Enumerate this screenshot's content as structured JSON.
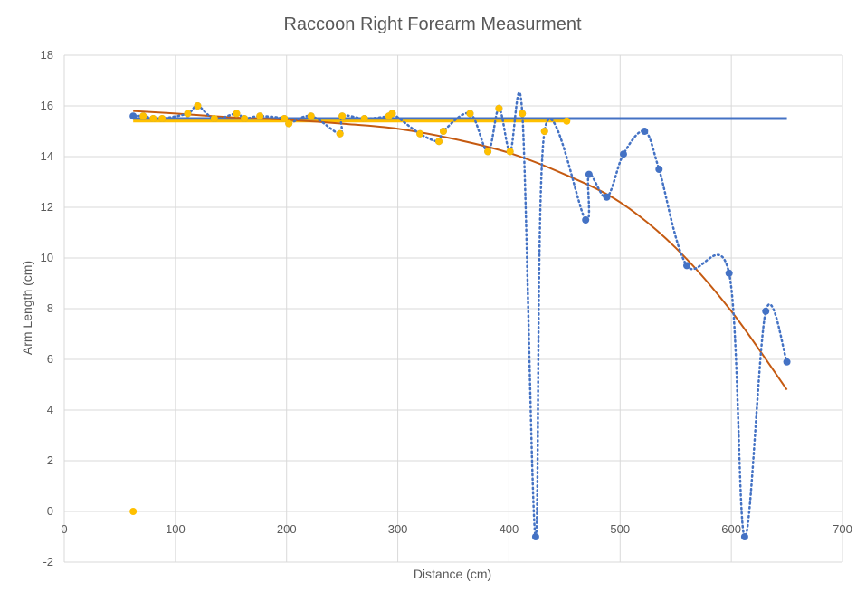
{
  "chart_data": {
    "type": "scatter",
    "title": "Raccoon Right Forearm Measurment",
    "xlabel": "Distance (cm)",
    "ylabel": "Arm Length (cm)",
    "xlim": [
      0,
      700
    ],
    "ylim": [
      -2,
      18
    ],
    "xticks": [
      "0",
      "100",
      "200",
      "300",
      "400",
      "500",
      "600",
      "700"
    ],
    "yticks": [
      "-2",
      "0",
      "2",
      "4",
      "6",
      "8",
      "10",
      "12",
      "14",
      "16",
      "18"
    ],
    "grid": true,
    "legend": "none",
    "series": [
      {
        "style": "markers-dotted-smooth-line",
        "color": "#4472c4",
        "x": [
          62,
          71,
          80,
          88,
          111,
          120,
          135,
          155,
          162,
          176,
          198,
          202,
          222,
          248,
          250,
          270,
          292,
          295,
          320,
          337,
          341,
          365,
          381,
          391,
          401,
          412,
          424,
          432,
          469,
          472,
          488,
          503,
          522,
          535,
          560,
          598,
          612,
          631,
          650
        ],
        "y": [
          15.6,
          15.6,
          15.5,
          15.5,
          15.7,
          16.0,
          15.5,
          15.7,
          15.5,
          15.6,
          15.5,
          15.3,
          15.6,
          14.9,
          15.6,
          15.5,
          15.6,
          15.7,
          14.9,
          14.6,
          15.0,
          15.7,
          14.2,
          15.9,
          14.2,
          15.7,
          -1.0,
          15.0,
          11.5,
          13.3,
          12.4,
          14.1,
          15.0,
          13.5,
          9.7,
          9.4,
          -1.0,
          7.9,
          5.9
        ]
      },
      {
        "style": "markers",
        "color": "#ffc000",
        "x": [
          62,
          71,
          80,
          88,
          111,
          120,
          135,
          155,
          162,
          176,
          198,
          202,
          222,
          248,
          250,
          270,
          292,
          295,
          320,
          337,
          341,
          365,
          381,
          391,
          401,
          412,
          432,
          452
        ],
        "y": [
          0.0,
          15.6,
          15.5,
          15.5,
          15.7,
          16.0,
          15.5,
          15.7,
          15.5,
          15.6,
          15.5,
          15.3,
          15.6,
          14.9,
          15.6,
          15.5,
          15.6,
          15.7,
          14.9,
          14.6,
          15.0,
          15.7,
          14.2,
          15.9,
          14.2,
          15.7,
          15.0,
          15.4
        ]
      },
      {
        "style": "line",
        "color": "#4472c4",
        "x": [
          62,
          650
        ],
        "y": [
          15.5,
          15.5
        ]
      },
      {
        "style": "line",
        "color": "#ffc000",
        "x": [
          62,
          452
        ],
        "y": [
          15.4,
          15.4
        ]
      },
      {
        "style": "trend-curve",
        "color": "#c55a11",
        "x": [
          62,
          100,
          150,
          200,
          250,
          300,
          350,
          400,
          450,
          500,
          550,
          600,
          650
        ],
        "y": [
          15.8,
          15.7,
          15.55,
          15.45,
          15.3,
          15.1,
          14.7,
          14.15,
          13.3,
          12.2,
          10.4,
          7.9,
          4.8
        ]
      }
    ]
  }
}
